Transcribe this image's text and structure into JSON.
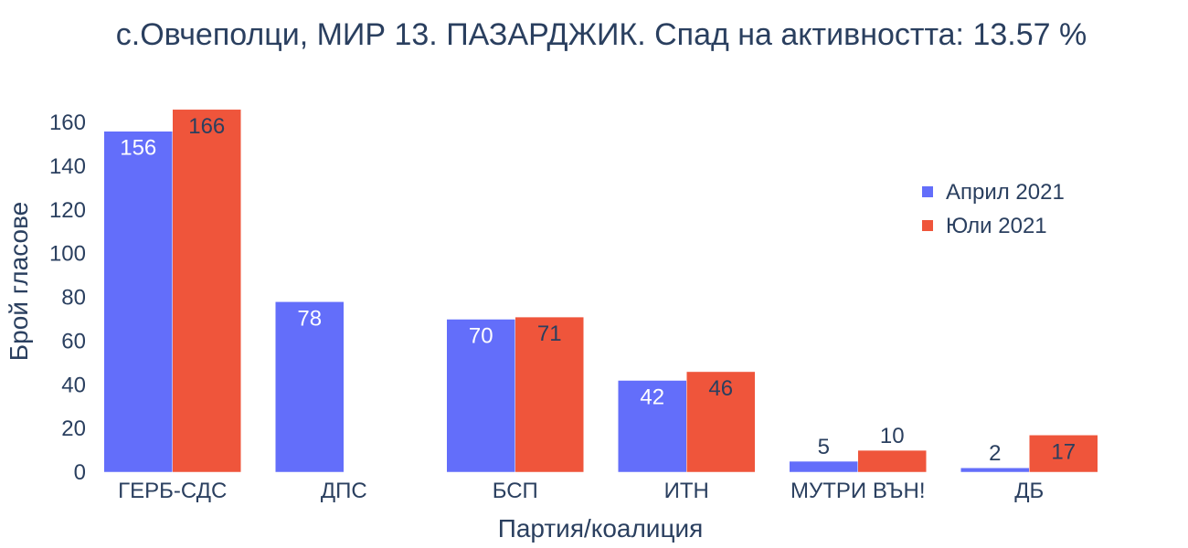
{
  "chart_data": {
    "type": "bar",
    "title": "с.Овчеполци, МИР 13. ПАЗАРДЖИК. Спад на активността: 13.57 %",
    "xlabel": "Партия/коалиция",
    "ylabel": "Брой гласове",
    "categories": [
      "ГЕРБ-СДС",
      "ДПС",
      "БСП",
      "ИТН",
      "МУТРИ ВЪН!",
      "ДБ"
    ],
    "series": [
      {
        "name": "Април 2021",
        "color": "#636efa",
        "values": [
          156,
          78,
          70,
          42,
          5,
          2
        ],
        "labels": [
          "156",
          "78",
          "70",
          "42",
          "5",
          "2"
        ]
      },
      {
        "name": "Юли 2021",
        "color": "#ef553b",
        "values": [
          166,
          0,
          71,
          46,
          10,
          17
        ],
        "labels": [
          "166",
          "",
          "71",
          "46",
          "10",
          "17"
        ]
      }
    ],
    "ylim": [
      0,
      168
    ],
    "yticks": [
      0,
      20,
      40,
      60,
      80,
      100,
      120,
      140,
      160
    ],
    "ytick_labels": [
      "0",
      "20",
      "40",
      "60",
      "80",
      "100",
      "120",
      "140",
      "160"
    ],
    "grid": false,
    "legend_position": "top-right"
  }
}
